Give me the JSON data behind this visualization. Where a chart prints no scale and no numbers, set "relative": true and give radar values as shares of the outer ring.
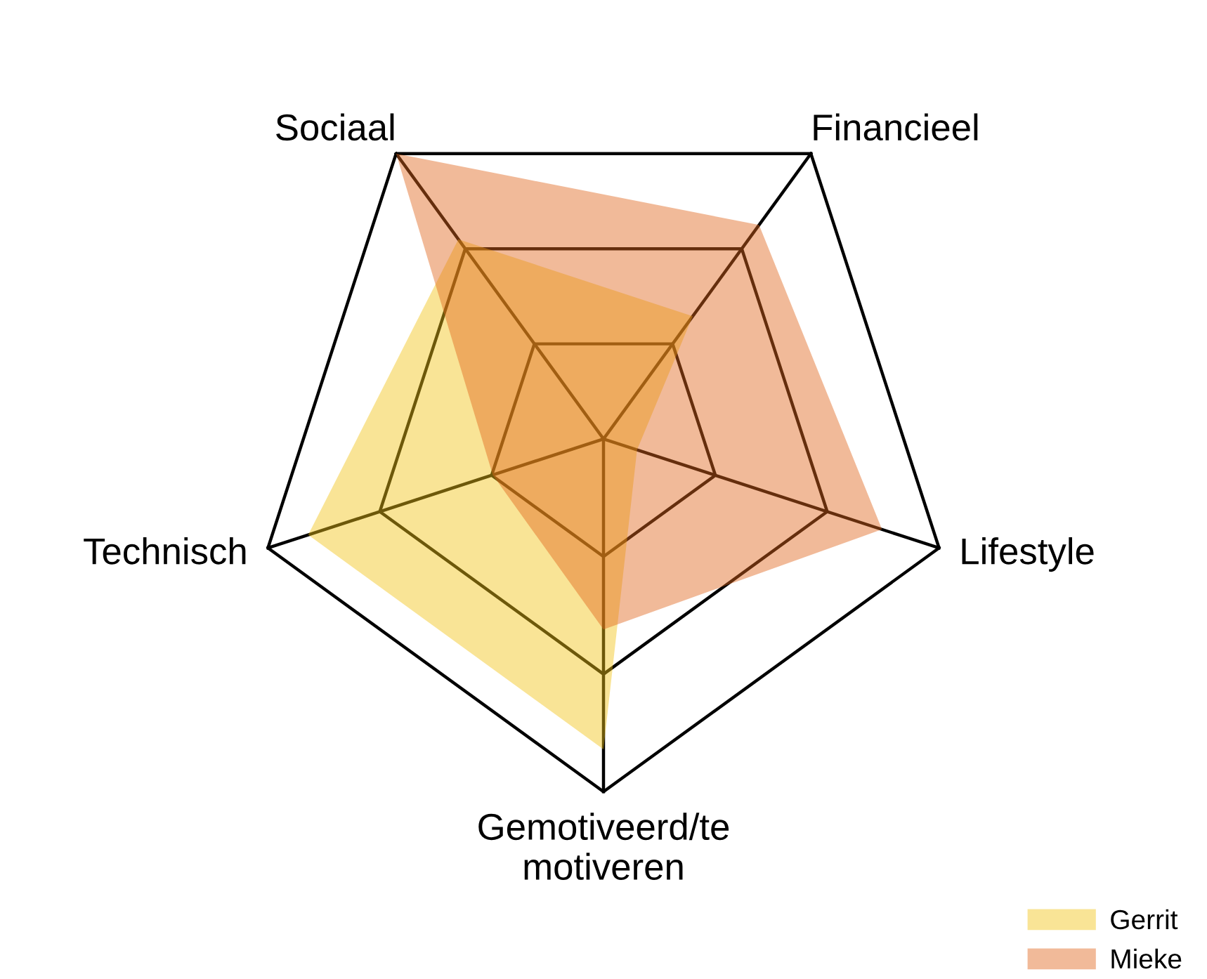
{
  "chart_data": {
    "type": "radar",
    "relative": true,
    "grid": true,
    "legend": "bottom right",
    "categories": [
      "Financieel",
      "Lifestyle",
      "Gemotiveerd/te\nmotiveren",
      "Technisch",
      "Sociaal"
    ],
    "series": [
      {
        "name": "Gerrit",
        "color": "#f2c417",
        "values": [
          0.43,
          0.1,
          0.88,
          0.88,
          0.7
        ]
      },
      {
        "name": "Mieke",
        "color": "#e0671c",
        "values": [
          0.75,
          0.83,
          0.54,
          0.33,
          1.0
        ]
      }
    ]
  }
}
